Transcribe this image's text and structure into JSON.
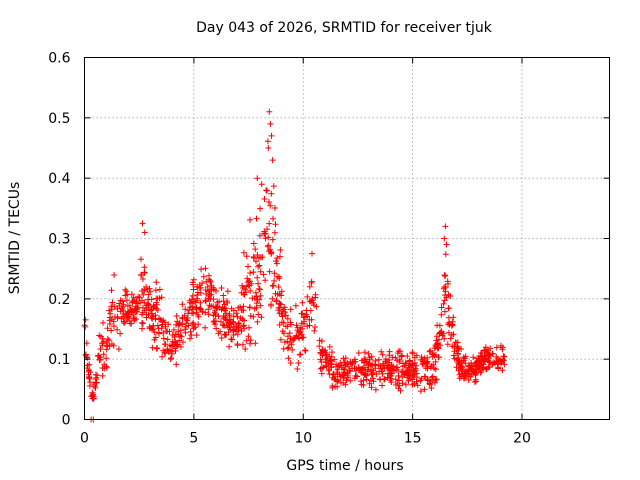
{
  "chart_data": {
    "type": "scatter",
    "title": "Day 043 of 2026, SRMTID for receiver tjuk",
    "xlabel": "GPS time / hours",
    "ylabel": "SRMTID / TECUs",
    "xlim": [
      0,
      24
    ],
    "ylim": [
      0,
      0.6
    ],
    "xticks": [
      0,
      5,
      10,
      15,
      20
    ],
    "yticks": [
      0,
      0.1,
      0.2,
      0.3,
      0.4,
      0.5,
      0.6
    ],
    "xtick_labels": [
      "0",
      "5",
      "10",
      "15",
      "20"
    ],
    "ytick_labels": [
      "0",
      "0.1",
      "0.2",
      "0.3",
      "0.4",
      "0.5",
      "0.6"
    ],
    "grid": true,
    "marker": "+",
    "color": "#ff0000",
    "series": [
      {
        "name": "SRMTID",
        "envelope": [
          {
            "x": 0.0,
            "lo": 0.11,
            "hi": 0.17
          },
          {
            "x": 0.3,
            "lo": 0.0,
            "hi": 0.09
          },
          {
            "x": 0.5,
            "lo": 0.02,
            "hi": 0.08
          },
          {
            "x": 0.7,
            "lo": 0.04,
            "hi": 0.19
          },
          {
            "x": 1.0,
            "lo": 0.07,
            "hi": 0.16
          },
          {
            "x": 1.3,
            "lo": 0.09,
            "hi": 0.28
          },
          {
            "x": 1.7,
            "lo": 0.12,
            "hi": 0.25
          },
          {
            "x": 2.0,
            "lo": 0.14,
            "hi": 0.22
          },
          {
            "x": 2.4,
            "lo": 0.13,
            "hi": 0.23
          },
          {
            "x": 2.7,
            "lo": 0.12,
            "hi": 0.32
          },
          {
            "x": 3.0,
            "lo": 0.1,
            "hi": 0.24
          },
          {
            "x": 3.5,
            "lo": 0.08,
            "hi": 0.25
          },
          {
            "x": 4.0,
            "lo": 0.07,
            "hi": 0.16
          },
          {
            "x": 4.5,
            "lo": 0.11,
            "hi": 0.21
          },
          {
            "x": 5.0,
            "lo": 0.12,
            "hi": 0.25
          },
          {
            "x": 5.5,
            "lo": 0.14,
            "hi": 0.27
          },
          {
            "x": 6.0,
            "lo": 0.12,
            "hi": 0.25
          },
          {
            "x": 6.5,
            "lo": 0.11,
            "hi": 0.22
          },
          {
            "x": 7.0,
            "lo": 0.1,
            "hi": 0.2
          },
          {
            "x": 7.5,
            "lo": 0.06,
            "hi": 0.37
          },
          {
            "x": 8.0,
            "lo": 0.08,
            "hi": 0.38
          },
          {
            "x": 8.4,
            "lo": 0.14,
            "hi": 0.5
          },
          {
            "x": 8.8,
            "lo": 0.11,
            "hi": 0.35
          },
          {
            "x": 9.2,
            "lo": 0.08,
            "hi": 0.2
          },
          {
            "x": 9.6,
            "lo": 0.05,
            "hi": 0.24
          },
          {
            "x": 10.0,
            "lo": 0.08,
            "hi": 0.2
          },
          {
            "x": 10.4,
            "lo": 0.13,
            "hi": 0.27
          },
          {
            "x": 10.8,
            "lo": 0.06,
            "hi": 0.16
          },
          {
            "x": 11.5,
            "lo": 0.04,
            "hi": 0.11
          },
          {
            "x": 12.5,
            "lo": 0.05,
            "hi": 0.12
          },
          {
            "x": 13.5,
            "lo": 0.04,
            "hi": 0.12
          },
          {
            "x": 14.5,
            "lo": 0.03,
            "hi": 0.14
          },
          {
            "x": 15.5,
            "lo": 0.03,
            "hi": 0.12
          },
          {
            "x": 16.0,
            "lo": 0.04,
            "hi": 0.14
          },
          {
            "x": 16.5,
            "lo": 0.08,
            "hi": 0.32
          },
          {
            "x": 17.0,
            "lo": 0.05,
            "hi": 0.16
          },
          {
            "x": 17.5,
            "lo": 0.05,
            "hi": 0.1
          },
          {
            "x": 18.0,
            "lo": 0.06,
            "hi": 0.13
          },
          {
            "x": 18.5,
            "lo": 0.06,
            "hi": 0.15
          },
          {
            "x": 19.2,
            "lo": 0.06,
            "hi": 0.14
          }
        ],
        "highlights": [
          {
            "x": 8.45,
            "y": 0.51
          },
          {
            "x": 8.5,
            "y": 0.49
          },
          {
            "x": 8.55,
            "y": 0.47
          },
          {
            "x": 8.4,
            "y": 0.45
          },
          {
            "x": 8.6,
            "y": 0.43
          },
          {
            "x": 7.9,
            "y": 0.4
          },
          {
            "x": 8.1,
            "y": 0.39
          },
          {
            "x": 8.3,
            "y": 0.38
          },
          {
            "x": 16.5,
            "y": 0.32
          },
          {
            "x": 16.45,
            "y": 0.3
          },
          {
            "x": 16.55,
            "y": 0.29
          },
          {
            "x": 2.65,
            "y": 0.325
          },
          {
            "x": 2.75,
            "y": 0.31
          },
          {
            "x": 0.3,
            "y": 0.0
          },
          {
            "x": 0.4,
            "y": 0.0
          },
          {
            "x": 0.05,
            "y": 0.165
          },
          {
            "x": 10.4,
            "y": 0.275
          }
        ]
      }
    ]
  }
}
